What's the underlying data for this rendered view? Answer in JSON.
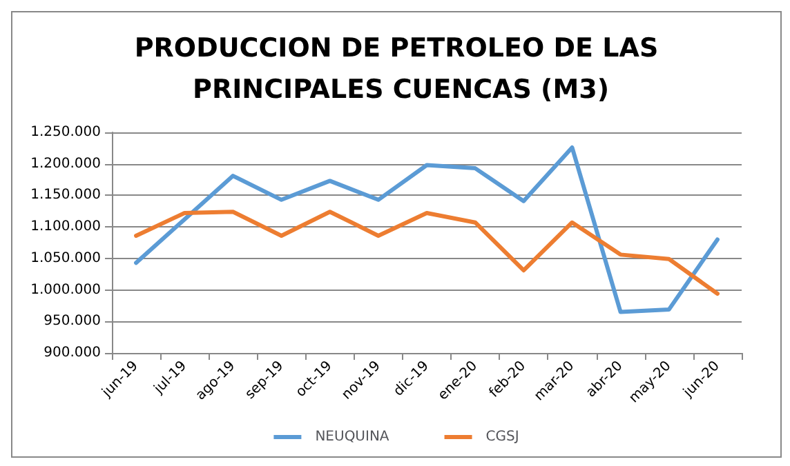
{
  "chart_data": {
    "type": "line",
    "title": "PRODUCCION DE PETROLEO DE LAS PRINCIPALES CUENCAS (M3)",
    "categories": [
      "jun-19",
      "jul-19",
      "ago-19",
      "sep-19",
      "oct-19",
      "nov-19",
      "dic-19",
      "ene-20",
      "feb-20",
      "mar-20",
      "abr-20",
      "may-20",
      "jun-20"
    ],
    "series": [
      {
        "name": "NEUQUINA",
        "color": "#5b9bd5",
        "values": [
          1043000,
          1112000,
          1181000,
          1143000,
          1173000,
          1143000,
          1198000,
          1193000,
          1141000,
          1226000,
          965000,
          969000,
          1080000
        ]
      },
      {
        "name": "CGSJ",
        "color": "#ed7d31",
        "values": [
          1086000,
          1122000,
          1124000,
          1086000,
          1124000,
          1086000,
          1122000,
          1107000,
          1031000,
          1107000,
          1056000,
          1049000,
          994000
        ]
      }
    ],
    "ylim": [
      900000,
      1250000
    ],
    "yticks": [
      {
        "value": 900000,
        "label": "900.000"
      },
      {
        "value": 950000,
        "label": "950.000"
      },
      {
        "value": 1000000,
        "label": "1.000.000"
      },
      {
        "value": 1050000,
        "label": "1.050.000"
      },
      {
        "value": 1100000,
        "label": "1.100.000"
      },
      {
        "value": 1150000,
        "label": "1.150.000"
      },
      {
        "value": 1200000,
        "label": "1.200.000"
      },
      {
        "value": 1250000,
        "label": "1.250.000"
      }
    ],
    "grid": "y",
    "legend": "bottom",
    "marker": "none",
    "line_style": "solid"
  }
}
